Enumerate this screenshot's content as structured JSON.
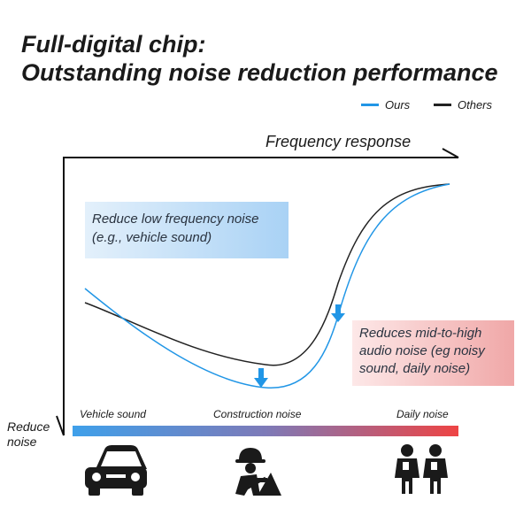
{
  "header": {
    "title_line1": "Full-digital chip:",
    "title_line2": "Outstanding noise reduction performance"
  },
  "legend": [
    {
      "label": "Ours",
      "color": "#2196e6"
    },
    {
      "label": "Others",
      "color": "#222222"
    }
  ],
  "axes": {
    "frequency_label": "Frequency response",
    "reduce_label": "Reduce noise"
  },
  "annotations": {
    "low_freq": "Reduce low frequency noise (e.g., vehicle sound)",
    "mid_high": "Reduces mid-to-high audio noise (eg noisy sound, daily noise)"
  },
  "noise_bands": [
    "Vehicle sound",
    "Construction noise",
    "Daily noise"
  ],
  "icons": [
    "car-icon",
    "construction-worker-icon",
    "people-icon"
  ],
  "chart_data": {
    "type": "line",
    "title": "Frequency response",
    "xlabel": "",
    "ylabel": "Reduce noise",
    "series": [
      {
        "name": "Ours",
        "color": "#2196e6",
        "values": [
          [
            0.05,
            0.74
          ],
          [
            0.1,
            0.6
          ],
          [
            0.2,
            0.44
          ],
          [
            0.3,
            0.34
          ],
          [
            0.45,
            0.3
          ],
          [
            0.55,
            0.38
          ],
          [
            0.62,
            0.6
          ],
          [
            0.7,
            0.9
          ],
          [
            0.8,
            1.06
          ],
          [
            0.95,
            1.16
          ]
        ]
      },
      {
        "name": "Others",
        "color": "#222222",
        "values": [
          [
            0.05,
            0.66
          ],
          [
            0.1,
            0.6
          ],
          [
            0.2,
            0.5
          ],
          [
            0.3,
            0.4
          ],
          [
            0.45,
            0.38
          ],
          [
            0.55,
            0.46
          ],
          [
            0.62,
            0.74
          ],
          [
            0.7,
            1.02
          ],
          [
            0.8,
            1.12
          ],
          [
            0.95,
            1.16
          ]
        ]
      }
    ]
  }
}
